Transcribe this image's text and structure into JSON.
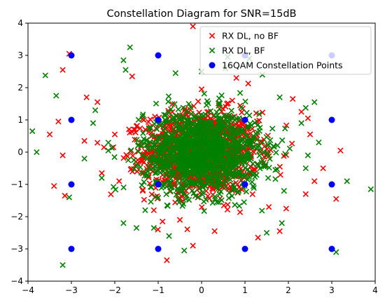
{
  "chart_data": {
    "type": "scatter",
    "title": "Constellation Diagram for SNR=15dB",
    "xlabel": "",
    "ylabel": "",
    "xlim": [
      -4,
      4
    ],
    "ylim": [
      -4,
      4
    ],
    "xticks": [
      -4,
      -3,
      -2,
      -1,
      0,
      1,
      2,
      3,
      4
    ],
    "yticks": [
      -4,
      -3,
      -2,
      -1,
      0,
      1,
      2,
      3,
      4
    ],
    "grid": false,
    "legend": "top-right",
    "series": [
      {
        "name": "RX DL, no BF",
        "marker": "x",
        "color": "#ff0000",
        "cloud": {
          "center": [
            0,
            0
          ],
          "std": [
            0.65,
            0.62
          ],
          "count": 1300
        },
        "outliers": [
          [
            -3.2,
            2.55
          ],
          [
            -3.05,
            3.05
          ],
          [
            -2.65,
            1.7
          ],
          [
            -3.3,
            0.95
          ],
          [
            -3.5,
            0.55
          ],
          [
            -3.2,
            -0.1
          ],
          [
            -3.4,
            -1.05
          ],
          [
            -3.15,
            -1.35
          ],
          [
            -2.4,
            1.55
          ],
          [
            -2.0,
            0.55
          ],
          [
            -2.3,
            -0.65
          ],
          [
            -1.9,
            -0.9
          ],
          [
            -1.5,
            0.8
          ],
          [
            -1.1,
            -1.8
          ],
          [
            -0.9,
            -2.15
          ],
          [
            -0.8,
            -3.35
          ],
          [
            -0.2,
            -2.9
          ],
          [
            0.0,
            1.95
          ],
          [
            0.3,
            -2.45
          ],
          [
            -0.2,
            3.9
          ],
          [
            1.55,
            -1.7
          ],
          [
            1.8,
            -2.45
          ],
          [
            2.1,
            1.65
          ],
          [
            2.6,
            -0.9
          ],
          [
            2.4,
            -1.3
          ],
          [
            2.8,
            -0.5
          ],
          [
            3.2,
            0.05
          ],
          [
            3.1,
            -1.45
          ],
          [
            2.3,
            1.25
          ],
          [
            0.8,
            2.3
          ],
          [
            -1.6,
            2.35
          ],
          [
            -2.7,
            0.35
          ],
          [
            2.5,
            0.55
          ],
          [
            1.3,
            -2.65
          ],
          [
            -0.5,
            -2.1
          ],
          [
            2.45,
            1.05
          ],
          [
            -2.25,
            0.15
          ],
          [
            1.95,
            -1.75
          ]
        ]
      },
      {
        "name": "RX DL, BF",
        "marker": "x",
        "color": "#008000",
        "cloud": {
          "center": [
            0,
            0
          ],
          "std": [
            0.67,
            0.63
          ],
          "count": 1300
        },
        "outliers": [
          [
            -3.9,
            0.65
          ],
          [
            -3.8,
            0.0
          ],
          [
            -3.6,
            2.38
          ],
          [
            -3.35,
            1.75
          ],
          [
            -3.05,
            -1.4
          ],
          [
            -3.2,
            -3.5
          ],
          [
            -2.7,
            -0.2
          ],
          [
            -2.5,
            0.9
          ],
          [
            -2.15,
            0.05
          ],
          [
            -1.8,
            2.85
          ],
          [
            -1.65,
            3.25
          ],
          [
            -1.75,
            2.55
          ],
          [
            -1.8,
            -2.2
          ],
          [
            -1.5,
            -2.35
          ],
          [
            -1.3,
            -1.8
          ],
          [
            -0.75,
            -2.6
          ],
          [
            -0.4,
            -3.05
          ],
          [
            -0.6,
            2.45
          ],
          [
            0.6,
            2.95
          ],
          [
            0.55,
            2.6
          ],
          [
            1.1,
            2.9
          ],
          [
            1.4,
            2.4
          ],
          [
            1.8,
            1.7
          ],
          [
            2.6,
            1.55
          ],
          [
            2.7,
            0.3
          ],
          [
            3.35,
            -0.9
          ],
          [
            3.1,
            -3.1
          ],
          [
            3.9,
            -1.15
          ],
          [
            2.4,
            -0.5
          ],
          [
            1.9,
            -1.2
          ],
          [
            1.85,
            -2.2
          ],
          [
            1.5,
            -2.5
          ],
          [
            2.3,
            0.9
          ],
          [
            0.0,
            2.5
          ],
          [
            -2.45,
            1.3
          ],
          [
            -1.1,
            -2.35
          ],
          [
            2.45,
            -0.1
          ],
          [
            -2.3,
            -0.8
          ]
        ]
      },
      {
        "name": "16QAM Constellation Points",
        "marker": "o",
        "color": "#0000ff",
        "points": [
          [
            -3,
            3
          ],
          [
            -1,
            3
          ],
          [
            1,
            3
          ],
          [
            3,
            3
          ],
          [
            -3,
            1
          ],
          [
            -1,
            1
          ],
          [
            1,
            1
          ],
          [
            3,
            1
          ],
          [
            -3,
            -1
          ],
          [
            -1,
            -1
          ],
          [
            1,
            -1
          ],
          [
            3,
            -1
          ],
          [
            -3,
            -3
          ],
          [
            -1,
            -3
          ],
          [
            1,
            -3
          ],
          [
            3,
            -3
          ]
        ]
      }
    ]
  }
}
